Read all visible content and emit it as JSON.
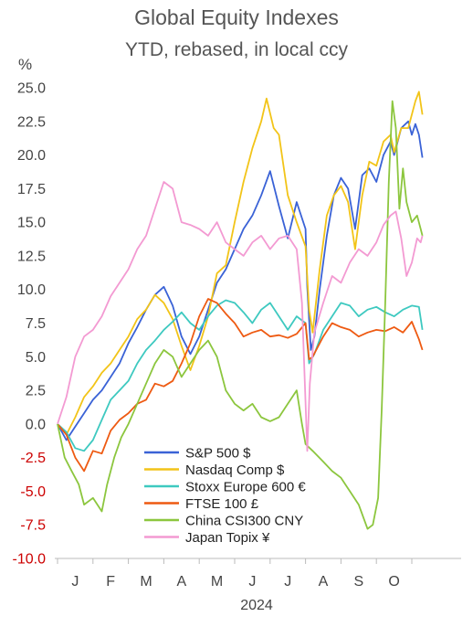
{
  "chart_data": {
    "type": "line",
    "title": "Global Equity Indexes",
    "subtitle": "YTD, rebased, in local ccy",
    "ylabel": "%",
    "xlabel": "2024",
    "ylim": [
      -10,
      25
    ],
    "yticks": [
      25.0,
      22.5,
      20.0,
      17.5,
      15.0,
      12.5,
      10.0,
      7.5,
      5.0,
      2.5,
      0.0,
      -2.5,
      -5.0,
      -7.5,
      -10.0
    ],
    "ytick_labels": [
      "25.0",
      "22.5",
      "20.0",
      "17.5",
      "15.0",
      "12.5",
      "10.0",
      "7.5",
      "5.0",
      "2.5",
      "0.0",
      "-2.5",
      "-5.0",
      "-7.5",
      "-10.0"
    ],
    "negative_tick_color": "#cc0000",
    "xlim": [
      0,
      10
    ],
    "month_labels": [
      "J",
      "F",
      "M",
      "A",
      "M",
      "J",
      "J",
      "A",
      "S",
      "O"
    ],
    "grid": false,
    "legend_position": "lower-center",
    "series": [
      {
        "name": "S&P 500 $",
        "color": "#3a62d6",
        "points": [
          [
            0,
            0
          ],
          [
            0.25,
            -1.2
          ],
          [
            0.5,
            -0.2
          ],
          [
            0.75,
            0.8
          ],
          [
            1,
            1.8
          ],
          [
            1.25,
            2.5
          ],
          [
            1.5,
            3.5
          ],
          [
            1.75,
            4.5
          ],
          [
            2,
            6
          ],
          [
            2.25,
            7.2
          ],
          [
            2.5,
            8.5
          ],
          [
            2.75,
            9.6
          ],
          [
            3,
            10.2
          ],
          [
            3.25,
            8.8
          ],
          [
            3.5,
            6.5
          ],
          [
            3.75,
            5.2
          ],
          [
            4,
            6.5
          ],
          [
            4.25,
            8.5
          ],
          [
            4.5,
            10.5
          ],
          [
            4.75,
            11.5
          ],
          [
            5,
            13
          ],
          [
            5.25,
            14.5
          ],
          [
            5.5,
            15.5
          ],
          [
            5.75,
            17
          ],
          [
            6,
            18.8
          ],
          [
            6.25,
            16.2
          ],
          [
            6.5,
            13.8
          ],
          [
            6.75,
            16.5
          ],
          [
            7,
            14.5
          ],
          [
            7.05,
            10.2
          ],
          [
            7.15,
            5.5
          ],
          [
            7.25,
            6.5
          ],
          [
            7.4,
            10
          ],
          [
            7.6,
            14
          ],
          [
            7.8,
            17
          ],
          [
            8,
            18.3
          ],
          [
            8.2,
            17.5
          ],
          [
            8.4,
            14.5
          ],
          [
            8.6,
            18.5
          ],
          [
            8.8,
            19
          ],
          [
            9,
            18
          ],
          [
            9.2,
            20
          ],
          [
            9.4,
            21
          ],
          [
            9.5,
            20
          ],
          [
            9.7,
            22
          ],
          [
            9.9,
            22.5
          ],
          [
            10,
            21.5
          ],
          [
            10.1,
            22.3
          ],
          [
            10.2,
            21.5
          ],
          [
            10.3,
            19.8
          ]
        ]
      },
      {
        "name": "Nasdaq Comp $",
        "color": "#f2c418",
        "points": [
          [
            0,
            0
          ],
          [
            0.25,
            -0.8
          ],
          [
            0.5,
            0.5
          ],
          [
            0.75,
            2
          ],
          [
            1,
            2.8
          ],
          [
            1.25,
            3.8
          ],
          [
            1.5,
            4.5
          ],
          [
            1.75,
            5.5
          ],
          [
            2,
            6.5
          ],
          [
            2.25,
            7.8
          ],
          [
            2.5,
            8.5
          ],
          [
            2.75,
            9.6
          ],
          [
            3,
            9
          ],
          [
            3.25,
            7.8
          ],
          [
            3.5,
            5.8
          ],
          [
            3.75,
            4
          ],
          [
            4,
            5.8
          ],
          [
            4.25,
            8
          ],
          [
            4.5,
            11.2
          ],
          [
            4.75,
            11.8
          ],
          [
            5,
            15
          ],
          [
            5.25,
            18
          ],
          [
            5.5,
            20.5
          ],
          [
            5.75,
            22.5
          ],
          [
            5.9,
            24.2
          ],
          [
            6.1,
            22
          ],
          [
            6.25,
            21.5
          ],
          [
            6.5,
            17
          ],
          [
            6.75,
            15
          ],
          [
            7,
            13.2
          ],
          [
            7.1,
            8.5
          ],
          [
            7.2,
            6.8
          ],
          [
            7.4,
            11.5
          ],
          [
            7.6,
            15.5
          ],
          [
            7.8,
            17
          ],
          [
            8,
            17.7
          ],
          [
            8.2,
            16.5
          ],
          [
            8.4,
            13
          ],
          [
            8.6,
            17
          ],
          [
            8.8,
            19.5
          ],
          [
            9,
            19.2
          ],
          [
            9.2,
            21
          ],
          [
            9.4,
            21.5
          ],
          [
            9.5,
            20.2
          ],
          [
            9.7,
            22
          ],
          [
            9.9,
            22
          ],
          [
            10.1,
            24
          ],
          [
            10.2,
            24.7
          ],
          [
            10.3,
            23
          ]
        ]
      },
      {
        "name": "Stoxx Europe 600 €",
        "color": "#3ec9c0",
        "points": [
          [
            0,
            0
          ],
          [
            0.25,
            -0.6
          ],
          [
            0.5,
            -1.8
          ],
          [
            0.75,
            -2
          ],
          [
            1,
            -1.2
          ],
          [
            1.25,
            0.3
          ],
          [
            1.5,
            1.8
          ],
          [
            1.75,
            2.5
          ],
          [
            2,
            3.2
          ],
          [
            2.25,
            4.5
          ],
          [
            2.5,
            5.5
          ],
          [
            2.75,
            6.2
          ],
          [
            3,
            7
          ],
          [
            3.25,
            7.6
          ],
          [
            3.5,
            8.3
          ],
          [
            3.75,
            7.5
          ],
          [
            4,
            7
          ],
          [
            4.25,
            8
          ],
          [
            4.5,
            8.8
          ],
          [
            4.75,
            9.2
          ],
          [
            5,
            9
          ],
          [
            5.25,
            8.3
          ],
          [
            5.5,
            7.5
          ],
          [
            5.75,
            8.5
          ],
          [
            6,
            9
          ],
          [
            6.25,
            8
          ],
          [
            6.5,
            7
          ],
          [
            6.75,
            8
          ],
          [
            7,
            7.5
          ],
          [
            7.1,
            4.5
          ],
          [
            7.25,
            5.2
          ],
          [
            7.5,
            7
          ],
          [
            7.75,
            8
          ],
          [
            8,
            9
          ],
          [
            8.25,
            8.8
          ],
          [
            8.5,
            8
          ],
          [
            8.75,
            8.5
          ],
          [
            9,
            8.7
          ],
          [
            9.25,
            8.3
          ],
          [
            9.5,
            8
          ],
          [
            9.75,
            8.5
          ],
          [
            10,
            8.8
          ],
          [
            10.2,
            8.7
          ],
          [
            10.3,
            7
          ]
        ]
      },
      {
        "name": "FTSE 100 £",
        "color": "#ee5a12",
        "points": [
          [
            0,
            0
          ],
          [
            0.25,
            -0.8
          ],
          [
            0.5,
            -2.5
          ],
          [
            0.75,
            -3.5
          ],
          [
            1,
            -2
          ],
          [
            1.25,
            -2.2
          ],
          [
            1.5,
            -0.5
          ],
          [
            1.75,
            0.3
          ],
          [
            2,
            0.8
          ],
          [
            2.25,
            1.5
          ],
          [
            2.5,
            1.8
          ],
          [
            2.75,
            3
          ],
          [
            3,
            2.8
          ],
          [
            3.25,
            3.2
          ],
          [
            3.5,
            4.5
          ],
          [
            3.75,
            6
          ],
          [
            4,
            8
          ],
          [
            4.25,
            9.3
          ],
          [
            4.5,
            9
          ],
          [
            4.75,
            8.2
          ],
          [
            5,
            7.5
          ],
          [
            5.25,
            6.5
          ],
          [
            5.5,
            6.8
          ],
          [
            5.75,
            7
          ],
          [
            6,
            6.5
          ],
          [
            6.25,
            6.6
          ],
          [
            6.5,
            6.4
          ],
          [
            6.75,
            6.7
          ],
          [
            7,
            7.5
          ],
          [
            7.1,
            4.8
          ],
          [
            7.2,
            5
          ],
          [
            7.5,
            6.5
          ],
          [
            7.75,
            7.5
          ],
          [
            8,
            7.2
          ],
          [
            8.25,
            7
          ],
          [
            8.5,
            6.5
          ],
          [
            8.75,
            6.8
          ],
          [
            9,
            7
          ],
          [
            9.25,
            6.9
          ],
          [
            9.5,
            7.2
          ],
          [
            9.75,
            6.8
          ],
          [
            10,
            7.6
          ],
          [
            10.2,
            6.3
          ],
          [
            10.3,
            5.5
          ]
        ]
      },
      {
        "name": "China CSI300 CNY",
        "color": "#8cc63e",
        "points": [
          [
            0,
            0
          ],
          [
            0.2,
            -2.5
          ],
          [
            0.4,
            -3.5
          ],
          [
            0.6,
            -4.5
          ],
          [
            0.75,
            -6
          ],
          [
            1,
            -5.5
          ],
          [
            1.25,
            -6.5
          ],
          [
            1.4,
            -4.5
          ],
          [
            1.6,
            -2.5
          ],
          [
            1.8,
            -1
          ],
          [
            2,
            0
          ],
          [
            2.25,
            1.5
          ],
          [
            2.5,
            3
          ],
          [
            2.75,
            4.5
          ],
          [
            3,
            5.5
          ],
          [
            3.25,
            5
          ],
          [
            3.5,
            3.5
          ],
          [
            3.75,
            4.5
          ],
          [
            4,
            5.5
          ],
          [
            4.25,
            6.2
          ],
          [
            4.5,
            5
          ],
          [
            4.75,
            2.5
          ],
          [
            5,
            1.5
          ],
          [
            5.25,
            1
          ],
          [
            5.5,
            1.5
          ],
          [
            5.75,
            0.5
          ],
          [
            6,
            0.2
          ],
          [
            6.25,
            0.5
          ],
          [
            6.5,
            1.5
          ],
          [
            6.75,
            2.5
          ],
          [
            6.9,
            0
          ],
          [
            7,
            -1.5
          ],
          [
            7.2,
            -2
          ],
          [
            7.5,
            -2.8
          ],
          [
            7.75,
            -3.5
          ],
          [
            8,
            -4
          ],
          [
            8.25,
            -5
          ],
          [
            8.5,
            -6
          ],
          [
            8.75,
            -7.8
          ],
          [
            8.9,
            -7.5
          ],
          [
            9.05,
            -5.5
          ],
          [
            9.15,
            1
          ],
          [
            9.25,
            9
          ],
          [
            9.35,
            18
          ],
          [
            9.45,
            24
          ],
          [
            9.55,
            22
          ],
          [
            9.65,
            16
          ],
          [
            9.75,
            19
          ],
          [
            9.85,
            16.5
          ],
          [
            10,
            15
          ],
          [
            10.15,
            15.5
          ],
          [
            10.25,
            14.5
          ],
          [
            10.3,
            14
          ]
        ]
      },
      {
        "name": "Japan Topix ¥",
        "color": "#f39ad2",
        "points": [
          [
            0,
            0
          ],
          [
            0.25,
            2
          ],
          [
            0.5,
            5
          ],
          [
            0.75,
            6.5
          ],
          [
            1,
            7
          ],
          [
            1.25,
            8
          ],
          [
            1.5,
            9.5
          ],
          [
            1.75,
            10.5
          ],
          [
            2,
            11.5
          ],
          [
            2.25,
            13
          ],
          [
            2.5,
            14
          ],
          [
            2.75,
            16
          ],
          [
            3,
            18
          ],
          [
            3.25,
            17.5
          ],
          [
            3.5,
            15
          ],
          [
            3.75,
            14.8
          ],
          [
            4,
            14.5
          ],
          [
            4.25,
            14
          ],
          [
            4.5,
            15
          ],
          [
            4.75,
            13.5
          ],
          [
            5,
            13
          ],
          [
            5.25,
            12.5
          ],
          [
            5.5,
            13.5
          ],
          [
            5.75,
            14
          ],
          [
            6,
            13
          ],
          [
            6.25,
            13.8
          ],
          [
            6.5,
            14
          ],
          [
            6.75,
            13
          ],
          [
            6.9,
            9
          ],
          [
            7.05,
            -2
          ],
          [
            7.12,
            3
          ],
          [
            7.25,
            6.8
          ],
          [
            7.5,
            9
          ],
          [
            7.75,
            11
          ],
          [
            8,
            10.5
          ],
          [
            8.25,
            12
          ],
          [
            8.5,
            13
          ],
          [
            8.75,
            12.5
          ],
          [
            9,
            13.5
          ],
          [
            9.2,
            14.8
          ],
          [
            9.4,
            15.5
          ],
          [
            9.55,
            15.8
          ],
          [
            9.7,
            13.8
          ],
          [
            9.85,
            11
          ],
          [
            10,
            12
          ],
          [
            10.15,
            13.8
          ],
          [
            10.25,
            13.5
          ],
          [
            10.3,
            14
          ]
        ]
      }
    ]
  }
}
